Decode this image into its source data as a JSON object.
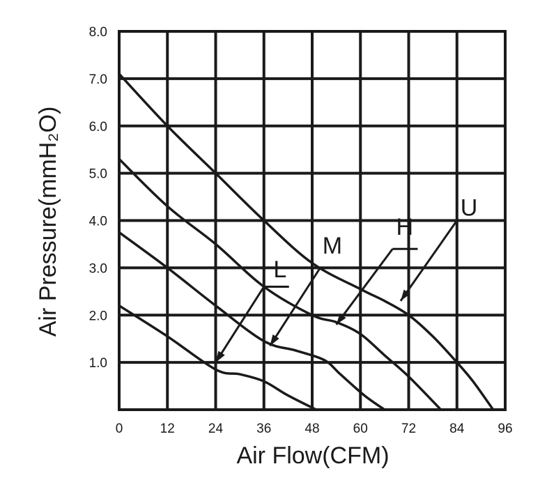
{
  "chart_data": {
    "type": "line",
    "xlabel": "Air Flow(CFM)",
    "ylabel": "Air Pressure(mmH₂O)",
    "xlim": [
      0,
      96
    ],
    "ylim": [
      0,
      8
    ],
    "grid": true,
    "x_ticks": [
      "0",
      "12",
      "24",
      "36",
      "48",
      "60",
      "72",
      "84",
      "96"
    ],
    "y_ticks": [
      "1.0",
      "2.0",
      "3.0",
      "4.0",
      "5.0",
      "6.0",
      "7.0",
      "8.0"
    ],
    "series": [
      {
        "name": "U",
        "points": [
          [
            0,
            7.1
          ],
          [
            12,
            6.0
          ],
          [
            24,
            5.0
          ],
          [
            36,
            4.0
          ],
          [
            48,
            3.1
          ],
          [
            60,
            2.55
          ],
          [
            66,
            2.3
          ],
          [
            72,
            2.0
          ],
          [
            78,
            1.55
          ],
          [
            84,
            1.0
          ],
          [
            88,
            0.6
          ],
          [
            93,
            0
          ]
        ],
        "arrow_from": [
          84,
          4.0
        ],
        "arrow_to": [
          70,
          2.3
        ],
        "label_pos": [
          87,
          4.1
        ]
      },
      {
        "name": "H",
        "points": [
          [
            0,
            5.3
          ],
          [
            12,
            4.3
          ],
          [
            24,
            3.5
          ],
          [
            36,
            2.6
          ],
          [
            48,
            2.0
          ],
          [
            54,
            1.85
          ],
          [
            60,
            1.6
          ],
          [
            66,
            1.15
          ],
          [
            72,
            0.7
          ],
          [
            80,
            0
          ]
        ],
        "arrow_from": [
          68,
          3.4
        ],
        "arrow_to": [
          54,
          1.8
        ],
        "label_pos": [
          71,
          3.7
        ]
      },
      {
        "name": "M",
        "points": [
          [
            0,
            3.75
          ],
          [
            12,
            3.0
          ],
          [
            24,
            2.2
          ],
          [
            36,
            1.45
          ],
          [
            44,
            1.25
          ],
          [
            51,
            1.05
          ],
          [
            55,
            0.75
          ],
          [
            61,
            0.3
          ],
          [
            66,
            0
          ]
        ],
        "arrow_from": [
          50,
          3.0
        ],
        "arrow_to": [
          37.5,
          1.35
        ],
        "label_pos": [
          53,
          3.3
        ]
      },
      {
        "name": "L",
        "points": [
          [
            0,
            2.2
          ],
          [
            12,
            1.55
          ],
          [
            24,
            0.85
          ],
          [
            30,
            0.75
          ],
          [
            36,
            0.6
          ],
          [
            42,
            0.3
          ],
          [
            49,
            0
          ]
        ],
        "arrow_from": [
          36,
          2.6
        ],
        "arrow_to": [
          24,
          1.0
        ],
        "label_pos": [
          40,
          2.8
        ]
      }
    ]
  }
}
